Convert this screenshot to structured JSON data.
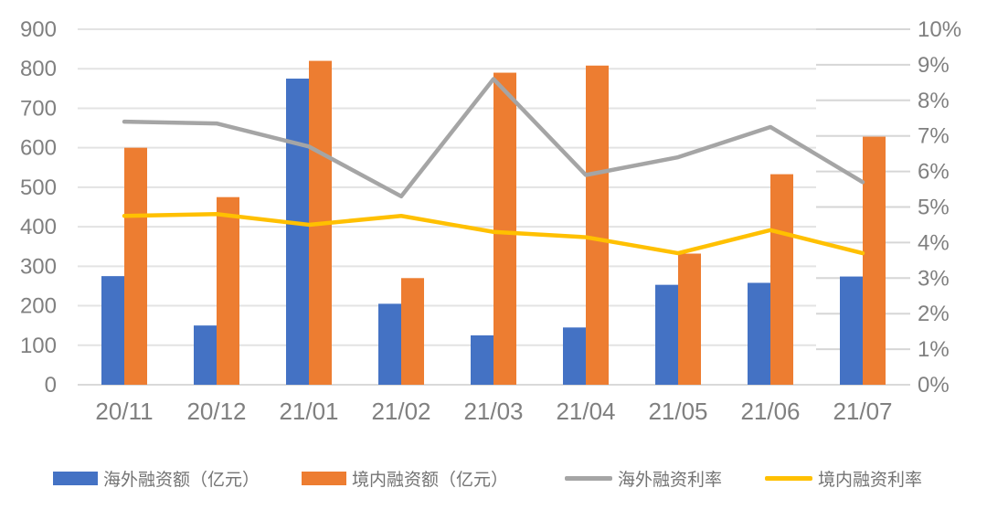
{
  "chart_data": {
    "type": "combo",
    "title": "",
    "categories": [
      "20/11",
      "20/12",
      "21/01",
      "21/02",
      "21/03",
      "21/04",
      "21/05",
      "21/06",
      "21/07"
    ],
    "series": [
      {
        "key": "overseas-amount",
        "name": "海外融资额（亿元）",
        "type": "bar",
        "axis": "left",
        "color": "#4472C4",
        "values": [
          275,
          150,
          775,
          205,
          125,
          145,
          253,
          258,
          274
        ]
      },
      {
        "key": "domestic-amount",
        "name": "境内融资额（亿元）",
        "type": "bar",
        "axis": "left",
        "color": "#ED7D31",
        "values": [
          600,
          475,
          820,
          270,
          790,
          808,
          332,
          533,
          628
        ]
      },
      {
        "key": "overseas-rate",
        "name": "海外融资利率",
        "type": "line",
        "axis": "right",
        "color": "#A5A5A5",
        "unit": "%",
        "values": [
          7.4,
          7.35,
          6.7,
          5.3,
          8.6,
          5.9,
          6.4,
          7.25,
          5.7
        ]
      },
      {
        "key": "domestic-rate",
        "name": "境内融资利率",
        "type": "line",
        "axis": "right",
        "color": "#FFC000",
        "unit": "%",
        "values": [
          4.75,
          4.8,
          4.5,
          4.75,
          4.3,
          4.15,
          3.7,
          4.35,
          3.7
        ]
      }
    ],
    "left_axis": {
      "min": 0,
      "max": 900,
      "step": 100,
      "tick_labels": [
        "0",
        "100",
        "200",
        "300",
        "400",
        "500",
        "600",
        "700",
        "800",
        "900"
      ]
    },
    "right_axis": {
      "min": 0,
      "max": 10,
      "step": 1,
      "tick_labels": [
        "0%",
        "1%",
        "2%",
        "3%",
        "4%",
        "5%",
        "6%",
        "7%",
        "8%",
        "9%",
        "10%"
      ]
    },
    "grid": true,
    "legend_position": "bottom"
  },
  "style": {
    "background": "#FFFFFF",
    "gridline_color": "#E3E3E3",
    "right_tick_color": "#D6D6D6",
    "axis_line_color": "#D9D9D9",
    "axis_label_color": "#808080",
    "legend_text_color": "#737373"
  }
}
